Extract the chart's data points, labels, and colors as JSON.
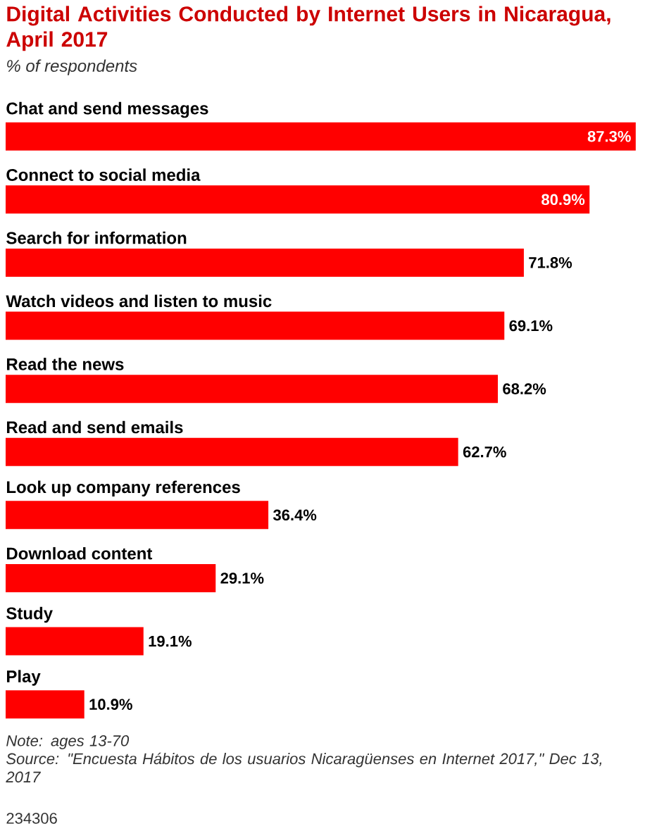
{
  "chart_data": {
    "type": "bar",
    "orientation": "horizontal",
    "title": "Digital Activities Conducted by Internet Users in Nicaragua, April 2017",
    "subtitle": "% of respondents",
    "categories": [
      "Chat and send messages",
      "Connect to social media",
      "Search for information",
      "Watch videos and listen to music",
      "Read the news",
      "Read and send emails",
      "Look up company references",
      "Download content",
      "Study",
      "Play"
    ],
    "values": [
      87.3,
      80.9,
      71.8,
      69.1,
      68.2,
      62.7,
      36.4,
      29.1,
      19.1,
      10.9
    ],
    "value_labels": [
      "87.3%",
      "80.9%",
      "71.8%",
      "69.1%",
      "68.2%",
      "62.7%",
      "36.4%",
      "29.1%",
      "19.1%",
      "10.9%"
    ],
    "color": "#ff0000",
    "xlim": [
      0,
      88
    ],
    "annotations": [
      "Note: ages 13-70",
      "Source: \"Encuesta Hábitos de los usuarios Nicaragüenses en Internet 2017,\" Dec 13, 2017",
      "234306"
    ]
  }
}
